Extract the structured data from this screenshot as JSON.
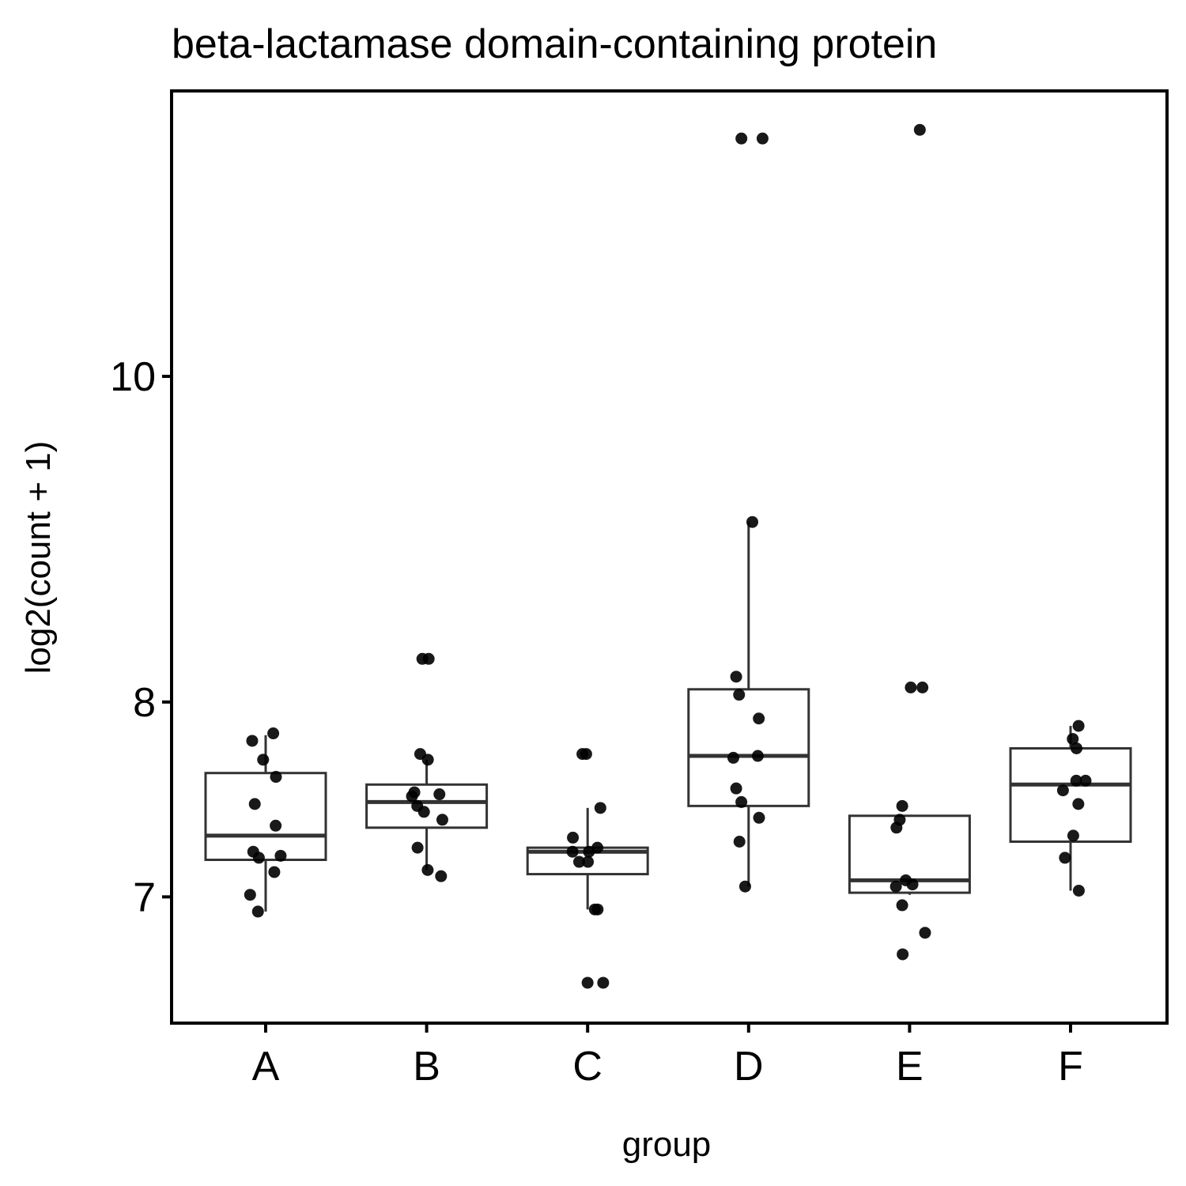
{
  "chart_data": {
    "type": "box",
    "title": "beta-lactamase domain-containing protein",
    "x_label": "group",
    "y_label": "log2(count + 1)",
    "y_scale": "log",
    "ylim": [
      6.42,
      12.16
    ],
    "yticks": [
      7,
      8,
      10
    ],
    "categories": [
      "A",
      "B",
      "C",
      "D",
      "E",
      "F"
    ],
    "boxes": [
      {
        "whisker_low": 6.93,
        "q1": 7.18,
        "median": 7.3,
        "q3": 7.62,
        "whisker_high": 7.82
      },
      {
        "whisker_low": 7.13,
        "q1": 7.34,
        "median": 7.47,
        "q3": 7.56,
        "whisker_high": 7.69
      },
      {
        "whisker_low": 6.94,
        "q1": 7.11,
        "median": 7.22,
        "q3": 7.24,
        "whisker_high": 7.44
      },
      {
        "whisker_low": 7.05,
        "q1": 7.45,
        "median": 7.71,
        "q3": 8.07,
        "whisker_high": 9.05
      },
      {
        "whisker_low": 7.01,
        "q1": 7.02,
        "median": 7.08,
        "q3": 7.4,
        "whisker_high": 7.4
      },
      {
        "whisker_low": 7.03,
        "q1": 7.27,
        "median": 7.56,
        "q3": 7.75,
        "whisker_high": 7.87
      }
    ],
    "points": [
      [
        7.83,
        7.79,
        7.69,
        7.6,
        7.46,
        7.35,
        7.22,
        7.2,
        7.19,
        7.12,
        7.01,
        6.93
      ],
      [
        8.24,
        8.24,
        7.72,
        7.69,
        7.52,
        7.5,
        7.51,
        7.45,
        7.42,
        7.38,
        7.24,
        7.13,
        7.1
      ],
      [
        7.72,
        7.72,
        7.44,
        7.29,
        7.24,
        7.22,
        7.22,
        7.17,
        7.17,
        6.94,
        6.94,
        6.6,
        6.6
      ],
      [
        11.77,
        11.77,
        9.05,
        8.14,
        8.04,
        7.91,
        7.71,
        7.7,
        7.54,
        7.47,
        7.39,
        7.27,
        7.05
      ],
      [
        11.84,
        8.08,
        8.08,
        7.45,
        7.38,
        7.34,
        7.08,
        7.05,
        7.06,
        6.96,
        6.83,
        6.73
      ],
      [
        7.87,
        7.8,
        7.75,
        7.58,
        7.58,
        7.53,
        7.46,
        7.3,
        7.19,
        7.03
      ]
    ],
    "color": "#000000",
    "box_color": "#333333"
  }
}
